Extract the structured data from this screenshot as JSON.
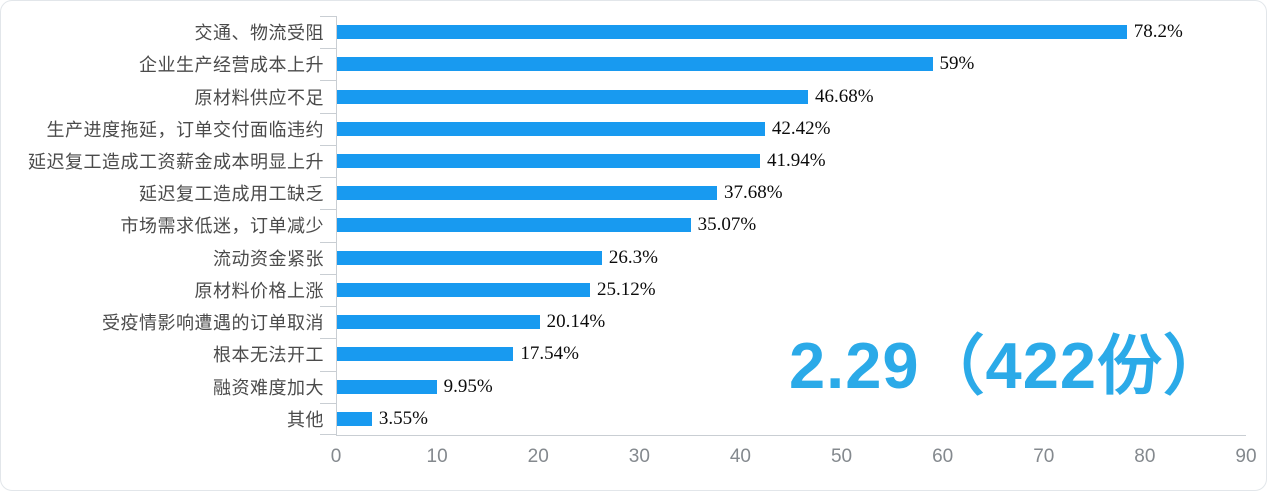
{
  "chart_data": {
    "type": "bar",
    "orientation": "horizontal",
    "title": "",
    "xlabel": "",
    "ylabel": "",
    "categories": [
      "交通、物流受阻",
      "企业生产经营成本上升",
      "原材料供应不足",
      "生产进度拖延，订单交付面临违约",
      "延迟复工造成工资薪金成本明显上升",
      "延迟复工造成用工缺乏",
      "市场需求低迷，订单减少",
      "流动资金紧张",
      "原材料价格上涨",
      "受疫情影响遭遇的订单取消",
      "根本无法开工",
      "融资难度加大",
      "其他"
    ],
    "values": [
      78.2,
      59,
      46.68,
      42.42,
      41.94,
      37.68,
      35.07,
      26.3,
      25.12,
      20.14,
      17.54,
      9.95,
      3.55
    ],
    "value_labels": [
      "78.2%",
      "59%",
      "46.68%",
      "42.42%",
      "41.94%",
      "37.68%",
      "35.07%",
      "26.3%",
      "25.12%",
      "20.14%",
      "17.54%",
      "9.95%",
      "3.55%"
    ],
    "xlim": [
      0,
      90
    ],
    "x_ticks": [
      0,
      10,
      20,
      30,
      40,
      50,
      60,
      70,
      80,
      90
    ],
    "grid": false,
    "legend": false,
    "bar_color": "#189af0",
    "axis_color": "#c9ced3",
    "annotation": "2.29（422份）",
    "annotation_color": "#2baae8"
  }
}
